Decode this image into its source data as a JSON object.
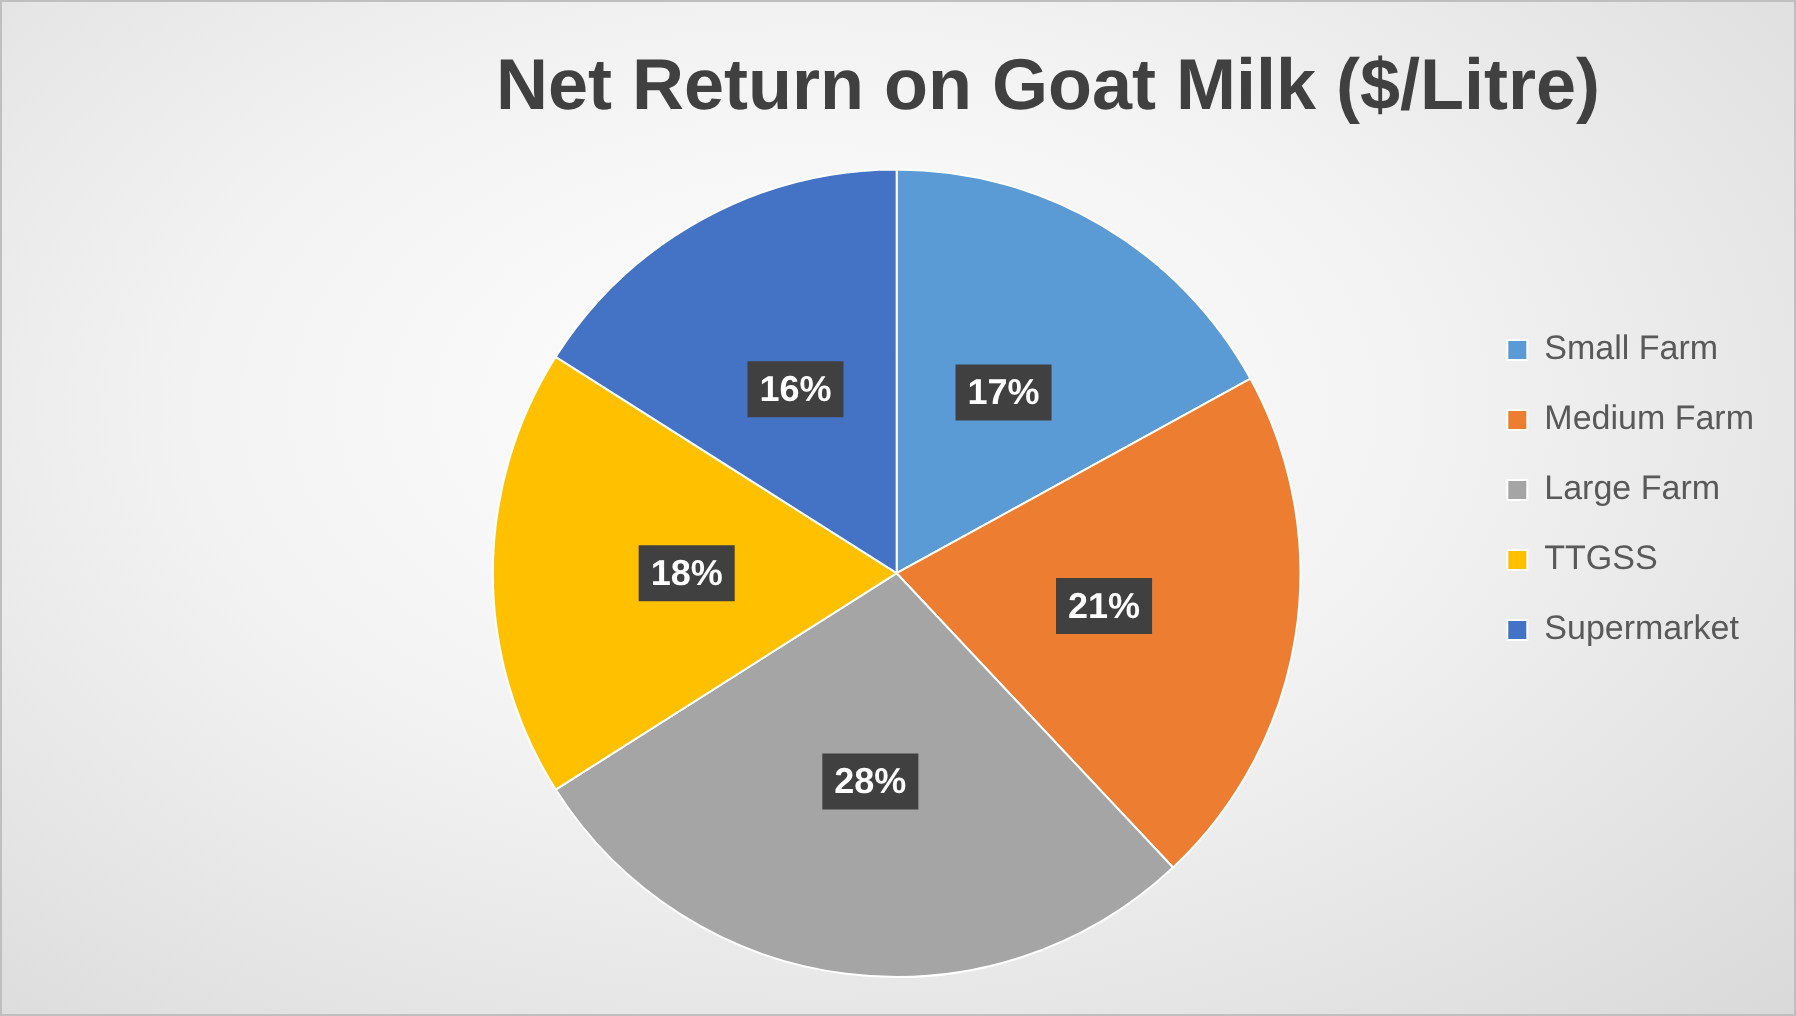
{
  "chart_data": {
    "type": "pie",
    "title": "Net Return on Goat Milk ($/Litre)",
    "categories": [
      "Small Farm",
      "Medium Farm",
      "Large Farm",
      "TTGSS",
      "Supermarket"
    ],
    "values": [
      17,
      21,
      28,
      18,
      16
    ],
    "colors": [
      "#5b9bd5",
      "#ed7d31",
      "#a5a5a5",
      "#ffc000",
      "#4472c4"
    ],
    "value_labels": [
      "17%",
      "21%",
      "28%",
      "18%",
      "16%"
    ],
    "legend": "right"
  }
}
